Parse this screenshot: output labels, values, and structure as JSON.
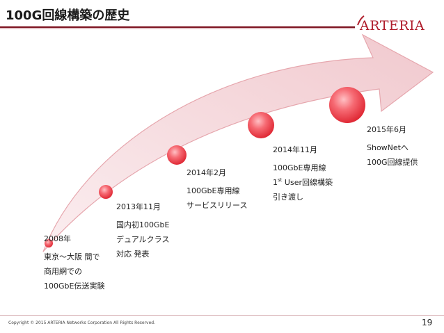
{
  "title": "100G回線構築の歴史",
  "logo": "ARTERIA",
  "colors": {
    "arrow_fill": "#f3d3d6",
    "arrow_stroke": "#e6a6ad",
    "dot_red": "#f0434f",
    "dot_highlight": "#ffc0c4",
    "title_rule": "#7a0f1c",
    "logo_red": "#b01e2c"
  },
  "milestones": [
    {
      "date": "2008年",
      "lines": [
        "東京〜大阪 間で",
        "商用網での",
        "100GbE伝送実験"
      ]
    },
    {
      "date": "2013年11月",
      "lines": [
        "国内初100GbE",
        "デュアルクラス",
        "対応 発表"
      ]
    },
    {
      "date": "2014年2月",
      "lines": [
        "100GbE専用線",
        "サービスリリース"
      ]
    },
    {
      "date": "2014年11月",
      "lines": [
        "100GbE専用線",
        "User回線構築",
        "引き渡し"
      ],
      "line2_prefix": "1",
      "line2_sup": "st"
    },
    {
      "date": "2015年6月",
      "lines": [
        "ShowNetへ",
        "100G回線提供"
      ]
    }
  ],
  "footer": {
    "copyright": "Copyright © 2015 ARTERIA Networks Corporation All Rights Reserved.",
    "page": "19"
  }
}
